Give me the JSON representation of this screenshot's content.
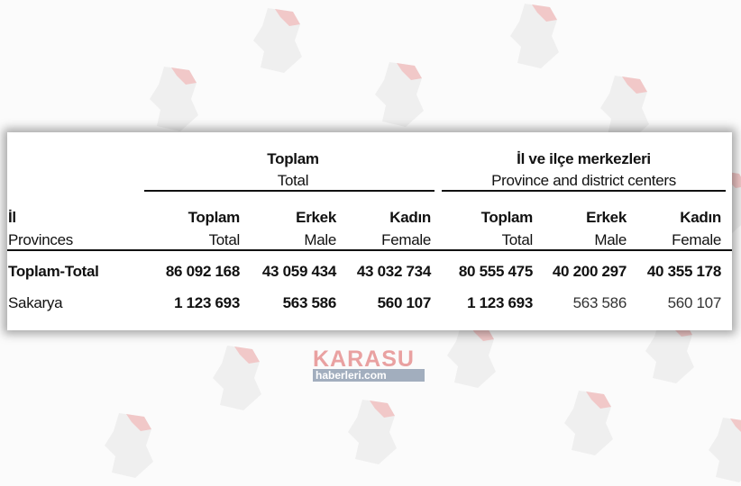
{
  "groups": [
    {
      "title": "Toplam",
      "subtitle": "Total"
    },
    {
      "title": "İl ve ilçe merkezleri",
      "subtitle": "Province and district centers"
    }
  ],
  "row_header": {
    "title": "İl",
    "subtitle": "Provinces"
  },
  "columns": [
    {
      "title": "Toplam",
      "subtitle": "Total"
    },
    {
      "title": "Erkek",
      "subtitle": "Male"
    },
    {
      "title": "Kadın",
      "subtitle": "Female"
    },
    {
      "title": "Toplam",
      "subtitle": "Total"
    },
    {
      "title": "Erkek",
      "subtitle": "Male"
    },
    {
      "title": "Kadın",
      "subtitle": "Female"
    }
  ],
  "rows": [
    {
      "label_bold": "Toplam",
      "label_rest": "-Total",
      "values": [
        "86 092 168",
        "43 059 434",
        "43 032 734",
        "80 555 475",
        "40 200 297",
        "40 355 178"
      ]
    },
    {
      "label_bold": "",
      "label_rest": "Sakarya",
      "values": [
        "1 123 693",
        "563 586",
        "560 107",
        "1 123 693",
        "563 586",
        "560 107"
      ]
    }
  ],
  "watermark": {
    "brand": "KARASU",
    "sub": "haberleri.com"
  },
  "colors": {
    "watermark_gray": "#e6e6e6",
    "watermark_red": "#e9a0a0"
  }
}
